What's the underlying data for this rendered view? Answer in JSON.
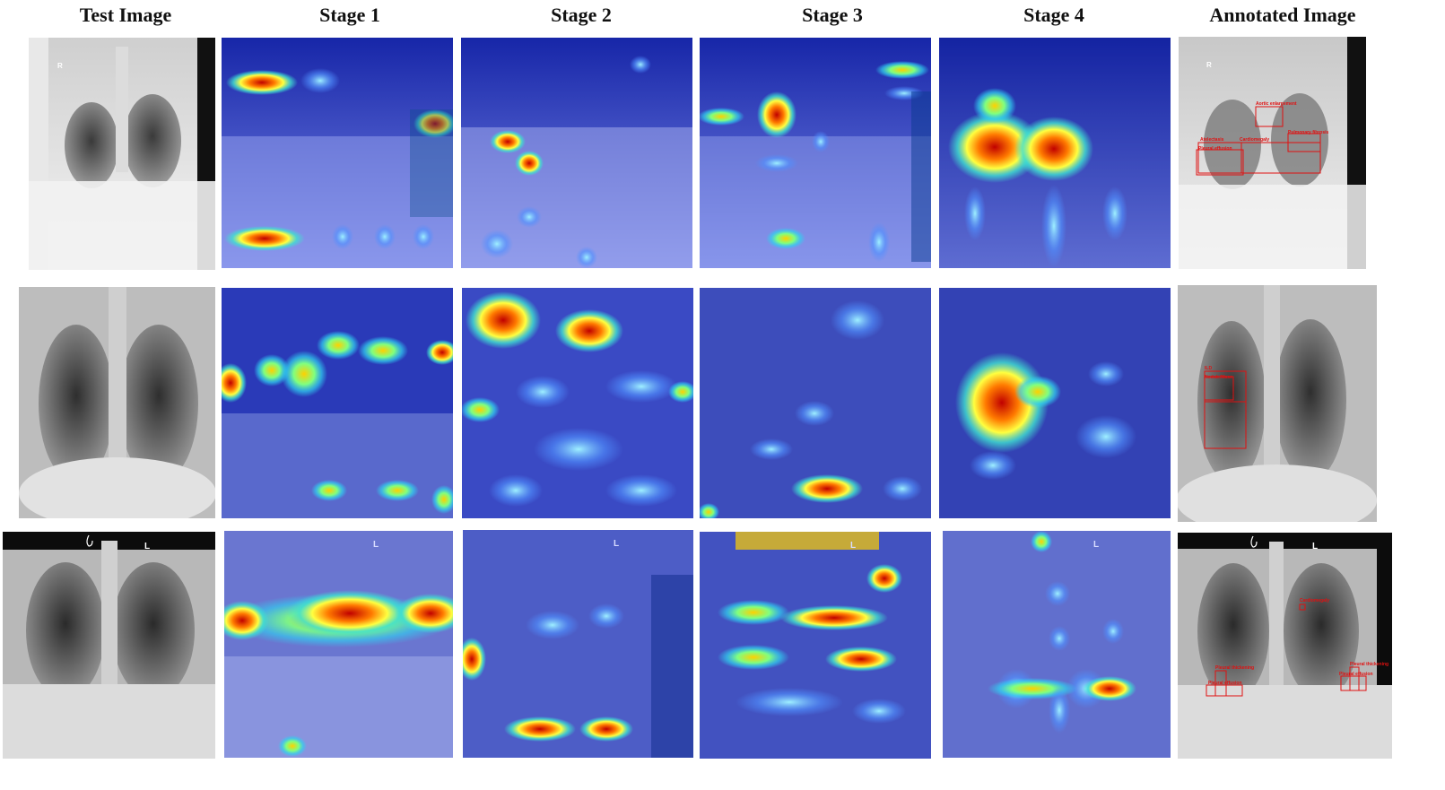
{
  "headers": [
    "Test Image",
    "Stage 1",
    "Stage 2",
    "Stage 3",
    "Stage 4",
    "Annotated Image"
  ],
  "rows": [
    {
      "side_marker": "R",
      "annotations": [
        "Aortic enlargement",
        "Atelectasis",
        "Pleural effusion",
        "Cardiomegaly",
        "Pulmonary fibrosis"
      ]
    },
    {
      "side_marker": "",
      "annotations": [
        "ILD",
        "Nodule/Mass"
      ]
    },
    {
      "side_marker": "L",
      "annotations": [
        "Cardiomegaly",
        "Pleural thickening",
        "Pleural effusion",
        "Pleural thickening",
        "Pleural effusion"
      ]
    }
  ],
  "colors": {
    "annotation_box": "#e01010",
    "heatmap_base": "#1a2fb0"
  }
}
